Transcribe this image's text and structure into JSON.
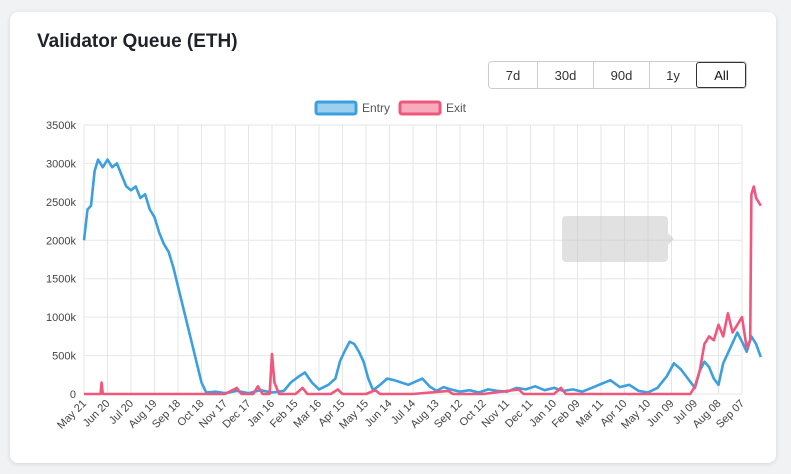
{
  "title": "Validator Queue (ETH)",
  "range_buttons": [
    {
      "label": "7d",
      "active": false
    },
    {
      "label": "30d",
      "active": false
    },
    {
      "label": "90d",
      "active": false
    },
    {
      "label": "1y",
      "active": false
    },
    {
      "label": "All",
      "active": true
    }
  ],
  "colors": {
    "entry": "#3b9fe0",
    "exit": "#f0577c",
    "grid": "#e6e6e6"
  },
  "chart_data": {
    "type": "line",
    "title": "",
    "xlabel": "",
    "ylabel": "",
    "ylim": [
      0,
      3500000
    ],
    "yticks": [
      {
        "value": 0,
        "label": "0"
      },
      {
        "value": 500000,
        "label": "500k"
      },
      {
        "value": 1000000,
        "label": "1000k"
      },
      {
        "value": 1500000,
        "label": "1500k"
      },
      {
        "value": 2000000,
        "label": "2000k"
      },
      {
        "value": 2500000,
        "label": "2500k"
      },
      {
        "value": 3000000,
        "label": "3000k"
      },
      {
        "value": 3500000,
        "label": "3500k"
      }
    ],
    "xlim": [
      0,
      28
    ],
    "xticks": [
      "May 21",
      "Jun 20",
      "Jul 20",
      "Aug 19",
      "Sep 18",
      "Oct 18",
      "Nov 17",
      "Dec 17",
      "Jan 16",
      "Feb 15",
      "Mar 16",
      "Apr 15",
      "May 15",
      "Jun 14",
      "Jul 14",
      "Aug 13",
      "Sep 12",
      "Oct 12",
      "Nov 11",
      "Dec 11",
      "Jan 10",
      "Feb 09",
      "Mar 11",
      "Apr 10",
      "May 10",
      "Jun 09",
      "Jul 09",
      "Aug 08",
      "Sep 07"
    ],
    "legend": "top-center",
    "grid": true,
    "series": [
      {
        "name": "Entry",
        "color": "#3b9fe0",
        "points": [
          [
            0,
            2000000
          ],
          [
            0.15,
            2400000
          ],
          [
            0.3,
            2450000
          ],
          [
            0.45,
            2900000
          ],
          [
            0.6,
            3050000
          ],
          [
            0.8,
            2950000
          ],
          [
            1.0,
            3050000
          ],
          [
            1.2,
            2950000
          ],
          [
            1.4,
            3000000
          ],
          [
            1.6,
            2850000
          ],
          [
            1.8,
            2700000
          ],
          [
            2.0,
            2650000
          ],
          [
            2.2,
            2700000
          ],
          [
            2.4,
            2550000
          ],
          [
            2.6,
            2600000
          ],
          [
            2.8,
            2400000
          ],
          [
            3.0,
            2300000
          ],
          [
            3.2,
            2100000
          ],
          [
            3.4,
            1950000
          ],
          [
            3.6,
            1850000
          ],
          [
            3.8,
            1650000
          ],
          [
            4.0,
            1400000
          ],
          [
            4.2,
            1150000
          ],
          [
            4.4,
            900000
          ],
          [
            4.6,
            650000
          ],
          [
            4.8,
            400000
          ],
          [
            5.0,
            150000
          ],
          [
            5.2,
            20000
          ],
          [
            5.6,
            30000
          ],
          [
            6.0,
            10000
          ],
          [
            6.5,
            40000
          ],
          [
            7.0,
            10000
          ],
          [
            7.5,
            50000
          ],
          [
            8.0,
            20000
          ],
          [
            8.5,
            40000
          ],
          [
            8.8,
            150000
          ],
          [
            9.1,
            220000
          ],
          [
            9.4,
            280000
          ],
          [
            9.7,
            150000
          ],
          [
            10.0,
            60000
          ],
          [
            10.4,
            120000
          ],
          [
            10.7,
            200000
          ],
          [
            10.9,
            430000
          ],
          [
            11.1,
            560000
          ],
          [
            11.3,
            680000
          ],
          [
            11.5,
            650000
          ],
          [
            11.7,
            550000
          ],
          [
            11.9,
            420000
          ],
          [
            12.1,
            200000
          ],
          [
            12.3,
            50000
          ],
          [
            12.6,
            120000
          ],
          [
            12.9,
            200000
          ],
          [
            13.2,
            180000
          ],
          [
            13.5,
            150000
          ],
          [
            13.8,
            120000
          ],
          [
            14.1,
            160000
          ],
          [
            14.4,
            200000
          ],
          [
            14.7,
            100000
          ],
          [
            15.0,
            40000
          ],
          [
            15.3,
            90000
          ],
          [
            15.6,
            60000
          ],
          [
            16.0,
            30000
          ],
          [
            16.4,
            50000
          ],
          [
            16.8,
            20000
          ],
          [
            17.2,
            60000
          ],
          [
            17.6,
            40000
          ],
          [
            18.0,
            30000
          ],
          [
            18.4,
            80000
          ],
          [
            18.8,
            60000
          ],
          [
            19.2,
            100000
          ],
          [
            19.6,
            50000
          ],
          [
            20.0,
            80000
          ],
          [
            20.4,
            40000
          ],
          [
            20.8,
            60000
          ],
          [
            21.2,
            30000
          ],
          [
            21.6,
            80000
          ],
          [
            22.0,
            130000
          ],
          [
            22.4,
            180000
          ],
          [
            22.8,
            90000
          ],
          [
            23.2,
            120000
          ],
          [
            23.6,
            40000
          ],
          [
            24.0,
            20000
          ],
          [
            24.4,
            80000
          ],
          [
            24.8,
            230000
          ],
          [
            25.1,
            400000
          ],
          [
            25.4,
            320000
          ],
          [
            25.7,
            200000
          ],
          [
            26.0,
            80000
          ],
          [
            26.2,
            300000
          ],
          [
            26.4,
            420000
          ],
          [
            26.6,
            350000
          ],
          [
            26.8,
            200000
          ],
          [
            27.0,
            120000
          ],
          [
            27.2,
            400000
          ],
          [
            27.5,
            600000
          ],
          [
            27.8,
            800000
          ],
          [
            28.0,
            680000
          ],
          [
            28.2,
            550000
          ],
          [
            28.4,
            750000
          ],
          [
            28.6,
            650000
          ],
          [
            28.8,
            480000
          ]
        ]
      },
      {
        "name": "Exit",
        "color": "#f0577c",
        "points": [
          [
            0,
            0
          ],
          [
            0.7,
            0
          ],
          [
            0.75,
            150000
          ],
          [
            0.8,
            0
          ],
          [
            2.0,
            0
          ],
          [
            4.0,
            0
          ],
          [
            6.0,
            0
          ],
          [
            6.5,
            80000
          ],
          [
            6.7,
            0
          ],
          [
            7.2,
            0
          ],
          [
            7.4,
            100000
          ],
          [
            7.6,
            0
          ],
          [
            7.9,
            0
          ],
          [
            8.0,
            520000
          ],
          [
            8.1,
            150000
          ],
          [
            8.3,
            0
          ],
          [
            9.0,
            0
          ],
          [
            9.3,
            80000
          ],
          [
            9.5,
            0
          ],
          [
            10.5,
            0
          ],
          [
            10.8,
            60000
          ],
          [
            11.0,
            0
          ],
          [
            12.0,
            0
          ],
          [
            12.4,
            50000
          ],
          [
            12.6,
            0
          ],
          [
            14.0,
            0
          ],
          [
            15.5,
            40000
          ],
          [
            15.7,
            0
          ],
          [
            17.0,
            0
          ],
          [
            18.5,
            60000
          ],
          [
            18.7,
            0
          ],
          [
            20.0,
            0
          ],
          [
            20.3,
            80000
          ],
          [
            20.5,
            0
          ],
          [
            22.0,
            0
          ],
          [
            24.0,
            0
          ],
          [
            25.8,
            0
          ],
          [
            26.0,
            100000
          ],
          [
            26.2,
            300000
          ],
          [
            26.4,
            650000
          ],
          [
            26.6,
            750000
          ],
          [
            26.8,
            700000
          ],
          [
            27.0,
            900000
          ],
          [
            27.2,
            750000
          ],
          [
            27.4,
            1050000
          ],
          [
            27.6,
            800000
          ],
          [
            27.8,
            900000
          ],
          [
            28.0,
            1000000
          ],
          [
            28.2,
            600000
          ],
          [
            28.35,
            700000
          ],
          [
            28.4,
            2600000
          ],
          [
            28.5,
            2700000
          ],
          [
            28.6,
            2550000
          ],
          [
            28.8,
            2450000
          ]
        ]
      }
    ]
  }
}
